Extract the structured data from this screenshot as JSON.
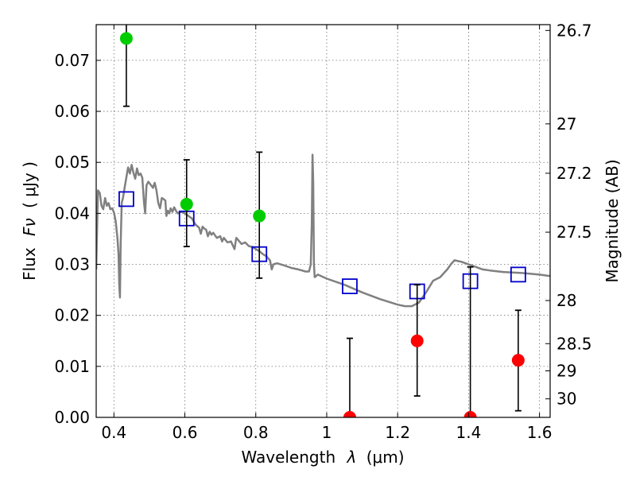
{
  "chart_data": {
    "type": "scatter",
    "xlabel": "Wavelength",
    "xlabel_symbol": "λ",
    "xlabel_unit": "(μm)",
    "ylabel": "Flux",
    "ylabel_symbol": "Fν",
    "ylabel_unit": "( μJy )",
    "y2label": "Magnitude (AB)",
    "xlim": [
      0.35,
      1.63
    ],
    "ylim": [
      0.0,
      0.077
    ],
    "grid": true,
    "x_ticks": [
      {
        "value": 0.4,
        "label": "0.4"
      },
      {
        "value": 0.6,
        "label": "0.6"
      },
      {
        "value": 0.8,
        "label": "0.8"
      },
      {
        "value": 1.0,
        "label": "1"
      },
      {
        "value": 1.2,
        "label": "1.2"
      },
      {
        "value": 1.4,
        "label": "1.4"
      },
      {
        "value": 1.6,
        "label": "1.6"
      }
    ],
    "y_ticks": [
      {
        "value": 0.0,
        "label": "0.00"
      },
      {
        "value": 0.01,
        "label": "0.01"
      },
      {
        "value": 0.02,
        "label": "0.02"
      },
      {
        "value": 0.03,
        "label": "0.03"
      },
      {
        "value": 0.04,
        "label": "0.04"
      },
      {
        "value": 0.05,
        "label": "0.05"
      },
      {
        "value": 0.06,
        "label": "0.06"
      },
      {
        "value": 0.07,
        "label": "0.07"
      }
    ],
    "y2_ticks": [
      {
        "mag": 26.7,
        "label": "26.7"
      },
      {
        "mag": 27.0,
        "label": "27"
      },
      {
        "mag": 27.2,
        "label": "27.2"
      },
      {
        "mag": 27.5,
        "label": "27.5"
      },
      {
        "mag": 28.0,
        "label": "28"
      },
      {
        "mag": 28.5,
        "label": "28.5"
      },
      {
        "mag": 29.0,
        "label": "29"
      },
      {
        "mag": 30.0,
        "label": "30"
      }
    ],
    "series": [
      {
        "kind": "spectrum",
        "color": "#808080",
        "points": [
          [
            0.35,
            0.029
          ],
          [
            0.355,
            0.0445
          ],
          [
            0.36,
            0.044
          ],
          [
            0.365,
            0.0415
          ],
          [
            0.37,
            0.0408
          ],
          [
            0.375,
            0.043
          ],
          [
            0.38,
            0.0415
          ],
          [
            0.385,
            0.042
          ],
          [
            0.39,
            0.0408
          ],
          [
            0.395,
            0.041
          ],
          [
            0.4,
            0.0402
          ],
          [
            0.405,
            0.0385
          ],
          [
            0.41,
            0.035
          ],
          [
            0.413,
            0.032
          ],
          [
            0.415,
            0.026
          ],
          [
            0.417,
            0.0235
          ],
          [
            0.419,
            0.034
          ],
          [
            0.422,
            0.042
          ],
          [
            0.426,
            0.0432
          ],
          [
            0.43,
            0.045
          ],
          [
            0.435,
            0.047
          ],
          [
            0.44,
            0.049
          ],
          [
            0.445,
            0.0478
          ],
          [
            0.45,
            0.0495
          ],
          [
            0.455,
            0.048
          ],
          [
            0.46,
            0.0468
          ],
          [
            0.465,
            0.0488
          ],
          [
            0.47,
            0.0475
          ],
          [
            0.475,
            0.0478
          ],
          [
            0.48,
            0.047
          ],
          [
            0.485,
            0.042
          ],
          [
            0.488,
            0.04
          ],
          [
            0.492,
            0.0455
          ],
          [
            0.497,
            0.0462
          ],
          [
            0.505,
            0.0455
          ],
          [
            0.51,
            0.045
          ],
          [
            0.515,
            0.046
          ],
          [
            0.52,
            0.0445
          ],
          [
            0.525,
            0.042
          ],
          [
            0.53,
            0.041
          ],
          [
            0.535,
            0.043
          ],
          [
            0.54,
            0.0428
          ],
          [
            0.545,
            0.0425
          ],
          [
            0.548,
            0.0395
          ],
          [
            0.552,
            0.0405
          ],
          [
            0.556,
            0.04
          ],
          [
            0.56,
            0.041
          ],
          [
            0.565,
            0.0403
          ],
          [
            0.57,
            0.0412
          ],
          [
            0.575,
            0.0405
          ],
          [
            0.58,
            0.04
          ],
          [
            0.59,
            0.0403
          ],
          [
            0.6,
            0.04
          ],
          [
            0.605,
            0.0398
          ],
          [
            0.61,
            0.0395
          ],
          [
            0.62,
            0.039
          ],
          [
            0.63,
            0.0378
          ],
          [
            0.64,
            0.0372
          ],
          [
            0.645,
            0.036
          ],
          [
            0.65,
            0.0374
          ],
          [
            0.655,
            0.037
          ],
          [
            0.66,
            0.0368
          ],
          [
            0.665,
            0.0355
          ],
          [
            0.67,
            0.0364
          ],
          [
            0.675,
            0.0358
          ],
          [
            0.68,
            0.0362
          ],
          [
            0.69,
            0.0352
          ],
          [
            0.7,
            0.0355
          ],
          [
            0.705,
            0.0345
          ],
          [
            0.71,
            0.0352
          ],
          [
            0.72,
            0.0343
          ],
          [
            0.73,
            0.0345
          ],
          [
            0.74,
            0.033
          ],
          [
            0.745,
            0.0352
          ],
          [
            0.75,
            0.0348
          ],
          [
            0.76,
            0.034
          ],
          [
            0.77,
            0.0343
          ],
          [
            0.78,
            0.0336
          ],
          [
            0.79,
            0.0334
          ],
          [
            0.8,
            0.033
          ],
          [
            0.81,
            0.0326
          ],
          [
            0.82,
            0.032
          ],
          [
            0.83,
            0.0316
          ],
          [
            0.84,
            0.0308
          ],
          [
            0.845,
            0.029
          ],
          [
            0.85,
            0.03
          ],
          [
            0.86,
            0.0302
          ],
          [
            0.88,
            0.0298
          ],
          [
            0.9,
            0.0293
          ],
          [
            0.92,
            0.029
          ],
          [
            0.94,
            0.0286
          ],
          [
            0.95,
            0.0286
          ],
          [
            0.955,
            0.03
          ],
          [
            0.958,
            0.038
          ],
          [
            0.96,
            0.0515
          ],
          [
            0.962,
            0.046
          ],
          [
            0.964,
            0.03
          ],
          [
            0.966,
            0.0275
          ],
          [
            0.975,
            0.028
          ],
          [
            1.0,
            0.0272
          ],
          [
            1.05,
            0.026
          ],
          [
            1.1,
            0.0245
          ],
          [
            1.15,
            0.0232
          ],
          [
            1.2,
            0.0221
          ],
          [
            1.22,
            0.0218
          ],
          [
            1.24,
            0.0218
          ],
          [
            1.26,
            0.0225
          ],
          [
            1.28,
            0.0245
          ],
          [
            1.3,
            0.0268
          ],
          [
            1.32,
            0.0275
          ],
          [
            1.34,
            0.029
          ],
          [
            1.35,
            0.03
          ],
          [
            1.36,
            0.0308
          ],
          [
            1.38,
            0.0305
          ],
          [
            1.4,
            0.03
          ],
          [
            1.42,
            0.0295
          ],
          [
            1.44,
            0.029
          ],
          [
            1.46,
            0.0288
          ],
          [
            1.5,
            0.0285
          ],
          [
            1.55,
            0.0283
          ],
          [
            1.6,
            0.028
          ],
          [
            1.63,
            0.0277
          ]
        ]
      },
      {
        "kind": "model_photometry",
        "marker": "open-square",
        "color": "#0000cc",
        "points": [
          [
            0.435,
            0.0428
          ],
          [
            0.605,
            0.039
          ],
          [
            0.81,
            0.032
          ],
          [
            1.065,
            0.0257
          ],
          [
            1.255,
            0.0247
          ],
          [
            1.405,
            0.0267
          ],
          [
            1.54,
            0.028
          ]
        ]
      },
      {
        "kind": "detections",
        "marker": "filled-circle",
        "color": "#00cc00",
        "points": [
          {
            "x": 0.435,
            "y": 0.0743,
            "lo": 0.061,
            "hi": 0.0775
          },
          {
            "x": 0.605,
            "y": 0.0418,
            "lo": 0.0335,
            "hi": 0.0505
          },
          {
            "x": 0.81,
            "y": 0.0395,
            "lo": 0.0273,
            "hi": 0.052
          }
        ]
      },
      {
        "kind": "upper_limits",
        "marker": "filled-circle",
        "color": "#ff0000",
        "points": [
          {
            "x": 1.065,
            "y": 0.0,
            "lo": 0.0,
            "hi": 0.0155
          },
          {
            "x": 1.255,
            "y": 0.015,
            "lo": 0.0042,
            "hi": 0.026
          },
          {
            "x": 1.405,
            "y": 0.0,
            "lo": 0.0,
            "hi": 0.0295
          },
          {
            "x": 1.54,
            "y": 0.0112,
            "lo": 0.0013,
            "hi": 0.021
          }
        ]
      }
    ]
  }
}
